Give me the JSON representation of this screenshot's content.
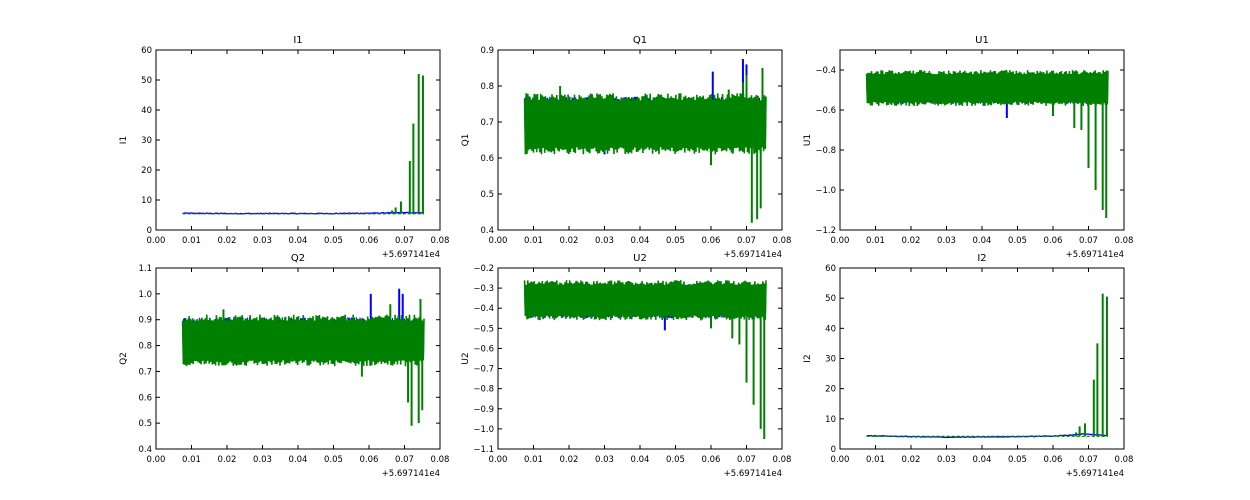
{
  "chart_data": [
    {
      "type": "line",
      "title": "I1",
      "xlabel": "",
      "ylabel": "I1",
      "xlim": [
        0.0,
        0.08
      ],
      "ylim": [
        0,
        60
      ],
      "xticks": [
        "0.00",
        "0.01",
        "0.02",
        "0.03",
        "0.04",
        "0.05",
        "0.06",
        "0.07",
        "0.08"
      ],
      "yticks": [
        "0",
        "10",
        "20",
        "30",
        "40",
        "50",
        "60"
      ],
      "x_offset_label": "+5.697141e4",
      "data_x_range": [
        0.0075,
        0.0755
      ],
      "series": [
        {
          "color": "#0000ff",
          "points": [
            [
              0.0075,
              5.6
            ],
            [
              0.02,
              5.5
            ],
            [
              0.03,
              5.5
            ],
            [
              0.04,
              5.5
            ],
            [
              0.05,
              5.5
            ],
            [
              0.06,
              5.6
            ],
            [
              0.065,
              5.7
            ],
            [
              0.07,
              5.8
            ],
            [
              0.0755,
              5.7
            ]
          ]
        },
        {
          "color": "#008000",
          "baseline": 5.4,
          "spikes": [
            [
              0.0665,
              6.5
            ],
            [
              0.0675,
              7.5
            ],
            [
              0.069,
              9.5
            ],
            [
              0.0715,
              23
            ],
            [
              0.0725,
              35.5
            ],
            [
              0.074,
              52
            ],
            [
              0.0752,
              51.5
            ]
          ]
        }
      ]
    },
    {
      "type": "line",
      "title": "Q1",
      "xlabel": "",
      "ylabel": "Q1",
      "xlim": [
        0.0,
        0.08
      ],
      "ylim": [
        0.4,
        0.9
      ],
      "xticks": [
        "0.00",
        "0.01",
        "0.02",
        "0.03",
        "0.04",
        "0.05",
        "0.06",
        "0.07",
        "0.08"
      ],
      "yticks": [
        "0.4",
        "0.5",
        "0.6",
        "0.7",
        "0.8",
        "0.9"
      ],
      "x_offset_label": "+5.697141e4",
      "data_x_range": [
        0.0075,
        0.0755
      ],
      "series": [
        {
          "color": "#0000ff",
          "band": [
            0.64,
            0.77
          ],
          "spikes": [
            [
              0.0605,
              0.84
            ],
            [
              0.069,
              0.875
            ],
            [
              0.07,
              0.86
            ],
            [
              0.03,
              0.61
            ]
          ]
        },
        {
          "color": "#008000",
          "band": [
            0.61,
            0.78
          ],
          "spikes": [
            [
              0.0175,
              0.8
            ],
            [
              0.06,
              0.58
            ],
            [
              0.065,
              0.79
            ],
            [
              0.069,
              0.81
            ],
            [
              0.07,
              0.83
            ],
            [
              0.0715,
              0.42
            ],
            [
              0.073,
              0.43
            ],
            [
              0.0745,
              0.85
            ],
            [
              0.074,
              0.46
            ]
          ]
        }
      ]
    },
    {
      "type": "line",
      "title": "U1",
      "xlabel": "",
      "ylabel": "U1",
      "xlim": [
        0.0,
        0.08
      ],
      "ylim": [
        -1.2,
        -0.3
      ],
      "xticks": [
        "0.00",
        "0.01",
        "0.02",
        "0.03",
        "0.04",
        "0.05",
        "0.06",
        "0.07",
        "0.08"
      ],
      "yticks": [
        "−1.2",
        "−1.0",
        "−0.8",
        "−0.6",
        "−0.4"
      ],
      "ytick_values": [
        -1.2,
        -1.0,
        -0.8,
        -0.6,
        -0.4
      ],
      "x_offset_label": "+5.697141e4",
      "data_x_range": [
        0.0075,
        0.0755
      ],
      "series": [
        {
          "color": "#0000ff",
          "band": [
            -0.57,
            -0.42
          ],
          "spikes": [
            [
              0.047,
              -0.64
            ]
          ]
        },
        {
          "color": "#008000",
          "band": [
            -0.58,
            -0.4
          ],
          "spikes": [
            [
              0.06,
              -0.63
            ],
            [
              0.066,
              -0.69
            ],
            [
              0.068,
              -0.7
            ],
            [
              0.07,
              -0.89
            ],
            [
              0.072,
              -1.0
            ],
            [
              0.074,
              -1.1
            ],
            [
              0.075,
              -1.14
            ]
          ]
        }
      ]
    },
    {
      "type": "line",
      "title": "Q2",
      "xlabel": "",
      "ylabel": "Q2",
      "xlim": [
        0.0,
        0.08
      ],
      "ylim": [
        0.4,
        1.1
      ],
      "xticks": [
        "0.00",
        "0.01",
        "0.02",
        "0.03",
        "0.04",
        "0.05",
        "0.06",
        "0.07",
        "0.08"
      ],
      "yticks": [
        "0.4",
        "0.5",
        "0.6",
        "0.7",
        "0.8",
        "0.9",
        "1.0",
        "1.1"
      ],
      "x_offset_label": "+5.697141e4",
      "data_x_range": [
        0.0075,
        0.0755
      ],
      "series": [
        {
          "color": "#0000ff",
          "band": [
            0.74,
            0.91
          ],
          "spikes": [
            [
              0.0605,
              1.0
            ],
            [
              0.0685,
              1.02
            ],
            [
              0.0695,
              1.0
            ]
          ]
        },
        {
          "color": "#008000",
          "band": [
            0.72,
            0.92
          ],
          "spikes": [
            [
              0.019,
              0.94
            ],
            [
              0.058,
              0.68
            ],
            [
              0.066,
              0.96
            ],
            [
              0.071,
              0.58
            ],
            [
              0.072,
              0.49
            ],
            [
              0.074,
              0.5
            ],
            [
              0.0745,
              0.98
            ],
            [
              0.075,
              0.55
            ]
          ]
        }
      ]
    },
    {
      "type": "line",
      "title": "U2",
      "xlabel": "",
      "ylabel": "U2",
      "xlim": [
        0.0,
        0.08
      ],
      "ylim": [
        -1.1,
        -0.2
      ],
      "xticks": [
        "0.00",
        "0.01",
        "0.02",
        "0.03",
        "0.04",
        "0.05",
        "0.06",
        "0.07",
        "0.08"
      ],
      "yticks": [
        "−1.1",
        "−1.0",
        "−0.9",
        "−0.8",
        "−0.7",
        "−0.6",
        "−0.5",
        "−0.4",
        "−0.3",
        "−0.2"
      ],
      "ytick_values": [
        -1.1,
        -1.0,
        -0.9,
        -0.8,
        -0.7,
        -0.6,
        -0.5,
        -0.4,
        -0.3,
        -0.2
      ],
      "x_offset_label": "+5.697141e4",
      "data_x_range": [
        0.0075,
        0.0755
      ],
      "series": [
        {
          "color": "#0000ff",
          "band": [
            -0.45,
            -0.28
          ],
          "spikes": [
            [
              0.047,
              -0.51
            ]
          ]
        },
        {
          "color": "#008000",
          "band": [
            -0.46,
            -0.26
          ],
          "spikes": [
            [
              0.06,
              -0.5
            ],
            [
              0.066,
              -0.55
            ],
            [
              0.068,
              -0.58
            ],
            [
              0.07,
              -0.77
            ],
            [
              0.072,
              -0.88
            ],
            [
              0.074,
              -1.0
            ],
            [
              0.075,
              -1.05
            ]
          ]
        }
      ]
    },
    {
      "type": "line",
      "title": "I2",
      "xlabel": "",
      "ylabel": "I2",
      "xlim": [
        0.0,
        0.08
      ],
      "ylim": [
        0,
        60
      ],
      "xticks": [
        "0.00",
        "0.01",
        "0.02",
        "0.03",
        "0.04",
        "0.05",
        "0.06",
        "0.07",
        "0.08"
      ],
      "yticks": [
        "0",
        "10",
        "20",
        "30",
        "40",
        "50",
        "60"
      ],
      "x_offset_label": "+5.697141e4",
      "data_x_range": [
        0.0075,
        0.0755
      ],
      "series": [
        {
          "color": "#0000ff",
          "points": [
            [
              0.0075,
              4.4
            ],
            [
              0.02,
              4.1
            ],
            [
              0.03,
              3.9
            ],
            [
              0.04,
              4.0
            ],
            [
              0.05,
              4.1
            ],
            [
              0.06,
              4.3
            ],
            [
              0.065,
              4.6
            ],
            [
              0.068,
              5.0
            ],
            [
              0.0755,
              4.5
            ]
          ]
        },
        {
          "color": "#008000",
          "baseline": 4.2,
          "spikes": [
            [
              0.0665,
              5.5
            ],
            [
              0.0675,
              7.5
            ],
            [
              0.069,
              8.5
            ],
            [
              0.0715,
              23
            ],
            [
              0.0725,
              35
            ],
            [
              0.074,
              51.5
            ],
            [
              0.0752,
              50.5
            ]
          ]
        }
      ]
    }
  ]
}
